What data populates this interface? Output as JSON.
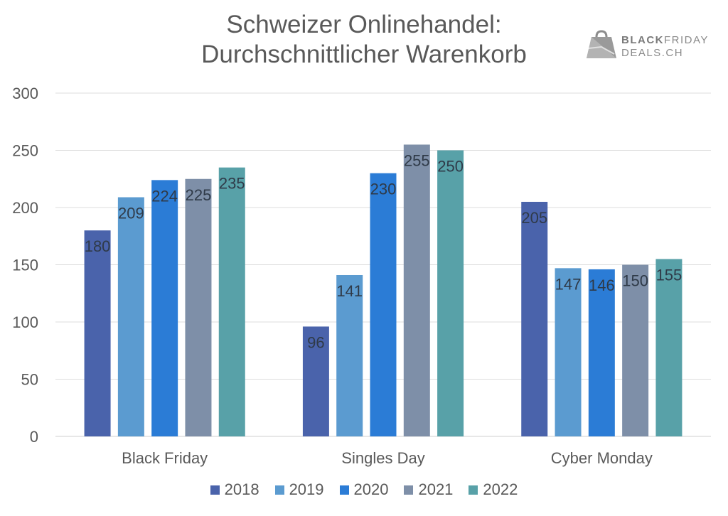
{
  "chart_data": {
    "type": "bar",
    "title": "Schweizer Onlinehandel: Durchschnittlicher Warenkorb",
    "title_lines": [
      "Schweizer Onlinehandel:",
      "Durchschnittlicher Warenkorb"
    ],
    "xlabel": "",
    "ylabel": "",
    "ylim": [
      0,
      300
    ],
    "yticks": [
      0,
      50,
      100,
      150,
      200,
      250,
      300
    ],
    "grid": true,
    "legend_position": "bottom",
    "categories": [
      "Black Friday",
      "Singles Day",
      "Cyber Monday"
    ],
    "series": [
      {
        "name": "2018",
        "color": "#4a63ab",
        "values": [
          180,
          96,
          205
        ]
      },
      {
        "name": "2019",
        "color": "#5b9bd0",
        "values": [
          209,
          141,
          147
        ]
      },
      {
        "name": "2020",
        "color": "#2b7cd6",
        "values": [
          224,
          230,
          146
        ]
      },
      {
        "name": "2021",
        "color": "#7e8fa8",
        "values": [
          225,
          255,
          150
        ]
      },
      {
        "name": "2022",
        "color": "#58a1a8",
        "values": [
          235,
          250,
          155
        ]
      }
    ],
    "data_labels": true
  },
  "logo": {
    "line1_bold": "BLACK",
    "line1_rest": "FRIDAY",
    "line2": "DEALS.CH"
  }
}
